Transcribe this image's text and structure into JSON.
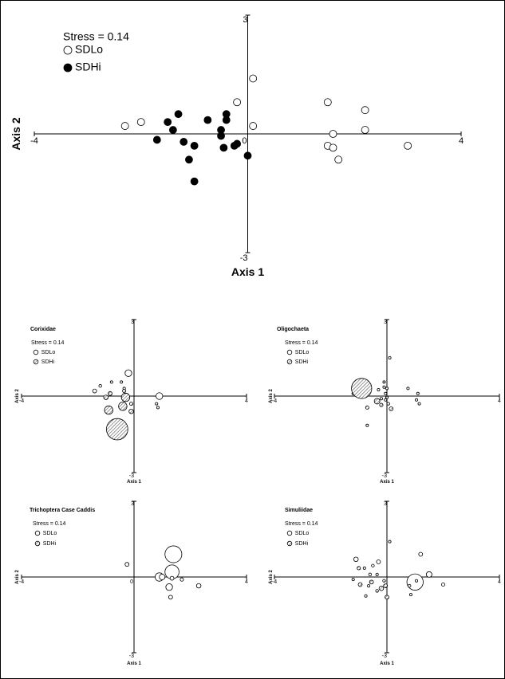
{
  "chart_data": [
    {
      "type": "scatter",
      "xlim": [
        -4,
        4
      ],
      "ylim": [
        -3,
        3
      ],
      "xlabel": "Axis 1",
      "ylabel": "Axis 2",
      "annotation": "Stress = 0.14",
      "tick_labels": {
        "x_min": "-4",
        "x_max": "4",
        "y_min": "-3",
        "y_max": "3",
        "origin": "0"
      },
      "legend": {
        "placement": "top-left",
        "entries": [
          "SDLo",
          "SDHi"
        ]
      },
      "series": [
        {
          "name": "SDLo",
          "marker": "open-circle",
          "points": [
            [
              0.1,
              1.4
            ],
            [
              -0.2,
              0.8
            ],
            [
              -2.3,
              0.2
            ],
            [
              -2.0,
              0.3
            ],
            [
              0.1,
              0.2
            ],
            [
              1.5,
              0.8
            ],
            [
              2.2,
              0.6
            ],
            [
              1.6,
              0.0
            ],
            [
              2.2,
              0.1
            ],
            [
              1.5,
              -0.3
            ],
            [
              1.6,
              -0.35
            ],
            [
              1.7,
              -0.65
            ],
            [
              3.0,
              -0.3
            ]
          ]
        },
        {
          "name": "SDHi",
          "marker": "filled-circle",
          "points": [
            [
              -1.3,
              0.5
            ],
            [
              -0.4,
              0.5
            ],
            [
              -0.4,
              0.35
            ],
            [
              -1.5,
              0.3
            ],
            [
              -0.75,
              0.35
            ],
            [
              -1.4,
              0.1
            ],
            [
              -0.5,
              0.1
            ],
            [
              -0.5,
              -0.05
            ],
            [
              -1.7,
              -0.15
            ],
            [
              -1.2,
              -0.2
            ],
            [
              -0.2,
              -0.25
            ],
            [
              -0.25,
              -0.3
            ],
            [
              -0.45,
              -0.35
            ],
            [
              -1.0,
              -0.3
            ],
            [
              0.0,
              -0.55
            ],
            [
              -1.1,
              -0.65
            ],
            [
              -1.0,
              -1.2
            ]
          ]
        }
      ]
    },
    {
      "type": "scatter",
      "title": "Corixidae",
      "xlim": [
        -4,
        4
      ],
      "ylim": [
        -3,
        3
      ],
      "xlabel": "Axis 1",
      "ylabel": "Axis 2",
      "annotation": "Stress = 0.14",
      "tick_labels": {
        "x_min": "-4",
        "x_max": "4",
        "y_min": "-3",
        "y_max": "3",
        "origin": ""
      },
      "legend": {
        "placement": "top-left",
        "entries": [
          "SDLo",
          "SDHi"
        ]
      },
      "series": [
        {
          "name": "SDLo",
          "marker": "open-circle",
          "points": [
            [
              -1.4,
              0.2,
              0.07
            ],
            [
              -1.2,
              0.4,
              0.05
            ],
            [
              -0.2,
              0.9,
              0.12
            ],
            [
              -0.8,
              0.55,
              0.04
            ],
            [
              -0.45,
              0.55,
              0.04
            ],
            [
              -0.35,
              0.3,
              0.04
            ],
            [
              0.9,
              0.0,
              0.12
            ],
            [
              0.8,
              -0.3,
              0.04
            ],
            [
              0.85,
              -0.45,
              0.03
            ]
          ]
        },
        {
          "name": "SDHi",
          "marker": "hatched-circle",
          "points": [
            [
              -0.6,
              -1.3,
              0.38
            ],
            [
              -0.9,
              -0.55,
              0.15
            ],
            [
              -0.4,
              -0.4,
              0.15
            ],
            [
              -0.3,
              -0.05,
              0.15
            ],
            [
              -0.85,
              0.1,
              0.07
            ],
            [
              -0.35,
              0.2,
              0.06
            ],
            [
              -0.1,
              -0.3,
              0.06
            ],
            [
              -0.1,
              -0.6,
              0.08
            ],
            [
              -1.0,
              -0.05,
              0.08
            ]
          ]
        }
      ]
    },
    {
      "type": "scatter",
      "title": "Oligochaeta",
      "xlim": [
        -4,
        4
      ],
      "ylim": [
        -3,
        3
      ],
      "xlabel": "Axis 1",
      "ylabel": "Axis 2",
      "annotation": "Stress = 0.14",
      "tick_labels": {
        "x_min": "-4",
        "x_max": "4",
        "y_min": "-3",
        "y_max": "3",
        "origin": ""
      },
      "legend": {
        "placement": "top-left",
        "entries": [
          "SDLo",
          "SDHi"
        ]
      },
      "series": [
        {
          "name": "SDLo",
          "marker": "open-circle",
          "points": [
            [
              0.1,
              1.5,
              0.02
            ],
            [
              0.75,
              0.3,
              0.02
            ],
            [
              1.1,
              0.1,
              0.02
            ],
            [
              1.05,
              -0.15,
              0.02
            ],
            [
              1.15,
              -0.3,
              0.02
            ],
            [
              -0.3,
              0.25,
              0.02
            ],
            [
              -0.1,
              0.35,
              0.03
            ],
            [
              -0.05,
              0.1,
              0.02
            ],
            [
              -0.05,
              -0.15,
              0.02
            ],
            [
              -0.2,
              -0.1,
              0.02
            ],
            [
              -1.2,
              0.1,
              0.02
            ],
            [
              -0.7,
              -1.15,
              0.02
            ]
          ]
        },
        {
          "name": "SDHi",
          "marker": "hatched-circle",
          "points": [
            [
              -0.9,
              0.3,
              0.36
            ],
            [
              -0.1,
              0.55,
              0.04
            ],
            [
              0.0,
              0.3,
              0.03
            ],
            [
              -0.35,
              -0.2,
              0.1
            ],
            [
              0.15,
              -0.5,
              0.07
            ],
            [
              -0.2,
              -0.35,
              0.06
            ],
            [
              -0.7,
              -0.45,
              0.06
            ],
            [
              0.05,
              -0.3,
              0.05
            ],
            [
              0.0,
              -0.05,
              0.04
            ]
          ]
        }
      ]
    },
    {
      "type": "scatter",
      "title": "Trichoptera Case Caddis",
      "xlim": [
        -4,
        4
      ],
      "ylim": [
        -3,
        3
      ],
      "xlabel": "Axis 1",
      "ylabel": "Axis 2",
      "annotation": "Stress = 0.14",
      "tick_labels": {
        "x_min": "-4",
        "x_max": "4",
        "y_min": "-3",
        "y_max": "3",
        "origin": "0"
      },
      "legend": {
        "placement": "top-left",
        "entries": [
          "SDLo",
          "SDHi"
        ]
      },
      "series": [
        {
          "name": "SDLo",
          "marker": "open-circle",
          "points": [
            [
              -0.25,
              0.5,
              0.07
            ],
            [
              0.9,
              0.0,
              0.15
            ],
            [
              1.4,
              0.9,
              0.3
            ],
            [
              1.35,
              0.2,
              0.25
            ],
            [
              1.0,
              0.0,
              0.1
            ],
            [
              1.35,
              -0.05,
              0.07
            ],
            [
              1.7,
              -0.1,
              0.06
            ],
            [
              2.3,
              -0.35,
              0.08
            ],
            [
              1.25,
              -0.4,
              0.12
            ],
            [
              1.3,
              -0.8,
              0.07
            ]
          ]
        },
        {
          "name": "SDHi",
          "marker": "hatched-circle",
          "points": []
        }
      ]
    },
    {
      "type": "scatter",
      "title": "Simuliidae",
      "xlim": [
        -4,
        4
      ],
      "ylim": [
        -3,
        3
      ],
      "xlabel": "Axis 1",
      "ylabel": "Axis 2",
      "annotation": "Stress = 0.14",
      "tick_labels": {
        "x_min": "-4",
        "x_max": "4",
        "y_min": "-3",
        "y_max": "3",
        "origin": ""
      },
      "legend": {
        "placement": "top-left",
        "entries": [
          "SDLo",
          "SDHi"
        ]
      },
      "series": [
        {
          "name": "SDLo",
          "marker": "open-circle",
          "points": [
            [
              0.1,
              1.4,
              0.02
            ],
            [
              1.0,
              -0.2,
              0.29
            ],
            [
              1.5,
              0.1,
              0.1
            ],
            [
              2.0,
              -0.3,
              0.06
            ],
            [
              0.8,
              -0.35,
              0.05
            ],
            [
              0.85,
              -0.7,
              0.02
            ],
            [
              1.05,
              -0.15,
              0.02
            ],
            [
              -1.1,
              0.7,
              0.08
            ],
            [
              -0.3,
              0.6,
              0.07
            ],
            [
              -0.5,
              0.45,
              0.05
            ],
            [
              -0.8,
              0.35,
              0.04
            ],
            [
              -0.6,
              0.1,
              0.05
            ],
            [
              -0.35,
              0.1,
              0.04
            ],
            [
              -0.65,
              -0.35,
              0.03
            ],
            [
              -1.2,
              -0.1,
              0.02
            ],
            [
              -0.75,
              -0.75,
              0.02
            ],
            [
              1.2,
              0.9,
              0.07
            ]
          ]
        },
        {
          "name": "SDHi",
          "marker": "hatched-circle",
          "points": [
            [
              -1.0,
              0.35,
              0.06
            ],
            [
              -0.55,
              -0.2,
              0.07
            ],
            [
              -0.2,
              -0.45,
              0.08
            ],
            [
              -0.05,
              -0.35,
              0.07
            ],
            [
              -0.1,
              -0.15,
              0.05
            ],
            [
              -0.95,
              -0.3,
              0.07
            ],
            [
              0.0,
              -0.8,
              0.07
            ],
            [
              -0.35,
              -0.55,
              0.05
            ]
          ]
        }
      ]
    }
  ],
  "colors": {
    "axis": "#000000",
    "marker_fill_hi": "#000000",
    "hatch": "#555555"
  }
}
